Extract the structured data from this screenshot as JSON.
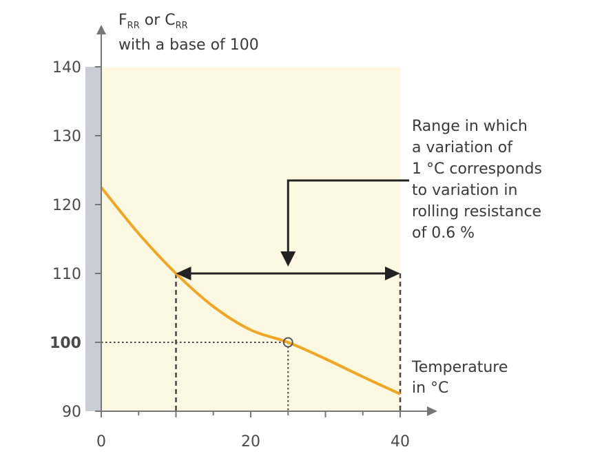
{
  "chart_data": {
    "type": "line",
    "y_axis_title": {
      "main": "F",
      "sub1": "RR",
      "mid": " or C",
      "sub2": "RR",
      "line2": "with a base of 100"
    },
    "x_axis_title": [
      "Temperature",
      "in °C"
    ],
    "xlim": [
      0,
      40
    ],
    "ylim": [
      90,
      140
    ],
    "x_ticks": [
      0,
      20,
      40
    ],
    "x_tick_labels": [
      "0",
      "20",
      "40"
    ],
    "y_ticks": [
      90,
      100,
      110,
      120,
      130,
      140
    ],
    "y_tick_labels": [
      "90",
      "100",
      "110",
      "120",
      "130",
      "140"
    ],
    "series": [
      {
        "color": "#f0a623",
        "x": [
          0,
          5,
          10,
          15,
          20,
          25,
          30,
          35,
          40
        ],
        "y": [
          122.5,
          115.8,
          110.0,
          105.2,
          101.8,
          100.0,
          97.6,
          95.0,
          92.5
        ]
      }
    ],
    "reference_point": {
      "x": 25,
      "y": 100
    },
    "range": {
      "x_start": 10,
      "x_end": 40,
      "y": 110
    },
    "annotation": [
      "Range in which",
      "a variation of",
      "1 °C corresponds",
      "to variation in",
      "rolling resistance",
      "of 0.6 %"
    ],
    "plot_background": "#fdf8e1",
    "grid": false
  }
}
